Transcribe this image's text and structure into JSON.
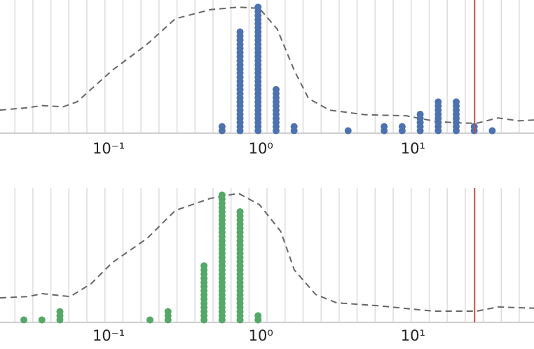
{
  "chart_data": [
    {
      "type": "dotplot",
      "xscale": "log",
      "xlim": [
        0.0193,
        62.4
      ],
      "ylim": [
        0,
        32
      ],
      "xticks": [
        {
          "value": 0.1,
          "label": "10⁻¹"
        },
        {
          "value": 1,
          "label": "10⁰"
        },
        {
          "value": 10,
          "label": "10¹"
        }
      ],
      "grid": true,
      "color": "#4c72b0",
      "bins": [
        0.0184,
        0.02416,
        0.03174,
        0.04169,
        0.05476,
        0.07193,
        0.09445,
        0.1241,
        0.1629,
        0.214,
        0.2811,
        0.3693,
        0.485,
        0.6368,
        0.8364,
        1.0985,
        1.443,
        1.895,
        2.489,
        3.268,
        4.293,
        5.638,
        7.405,
        9.727,
        12.78,
        16.78,
        22.04,
        28.94,
        38.02,
        49.93,
        65.59
      ],
      "counts": [
        0,
        0,
        0,
        0,
        0,
        0,
        0,
        0,
        0,
        0,
        0,
        0,
        2,
        25,
        31,
        11,
        2,
        0,
        0,
        1,
        0,
        2,
        2,
        5,
        8,
        8,
        2,
        1,
        0,
        0
      ],
      "density": {
        "color": "#666666",
        "x": [
          0.0193,
          0.0295,
          0.0365,
          0.0501,
          0.062,
          0.105,
          0.179,
          0.274,
          0.466,
          0.713,
          0.979,
          1.28,
          1.66,
          2.06,
          2.83,
          4.81,
          9.09,
          13.9,
          19.1,
          26.2,
          36.1,
          49.6,
          62.4
        ],
        "y": [
          5.6,
          6.2,
          6.7,
          6.4,
          7.6,
          15.2,
          21.6,
          27.8,
          30.0,
          30.6,
          30.3,
          25.3,
          15.2,
          8.4,
          5.6,
          4.5,
          4.2,
          2.9,
          2.5,
          2.4,
          3.7,
          3.0,
          3.2
        ]
      },
      "vline": {
        "value": 25.4,
        "color": "#c44e52"
      }
    },
    {
      "type": "dotplot",
      "xscale": "log",
      "xlim": [
        0.0193,
        62.4
      ],
      "ylim": [
        0,
        32
      ],
      "xticks": [
        {
          "value": 0.1,
          "label": "10⁻¹"
        },
        {
          "value": 1,
          "label": "10⁰"
        },
        {
          "value": 10,
          "label": "10¹"
        }
      ],
      "grid": true,
      "color": "#55a868",
      "bins": [
        0.0184,
        0.02416,
        0.03174,
        0.04169,
        0.05476,
        0.07193,
        0.09445,
        0.1241,
        0.1629,
        0.214,
        0.2811,
        0.3693,
        0.485,
        0.6368,
        0.8364,
        1.0985,
        1.443,
        1.895,
        2.489,
        3.268,
        4.293,
        5.638,
        7.405,
        9.727,
        12.78,
        16.78,
        22.04,
        28.94,
        38.02,
        49.93,
        65.59
      ],
      "counts": [
        0,
        1,
        1,
        3,
        0,
        0,
        0,
        0,
        1,
        3,
        0,
        14,
        31,
        27,
        2,
        0,
        0,
        0,
        0,
        0,
        0,
        0,
        0,
        0,
        0,
        0,
        0,
        0,
        0,
        0
      ],
      "density": {
        "color": "#666666",
        "x": [
          0.0193,
          0.0295,
          0.0365,
          0.0558,
          0.0767,
          0.105,
          0.179,
          0.274,
          0.466,
          0.713,
          0.979,
          1.35,
          1.66,
          2.29,
          3.15,
          5.94,
          11.2,
          13.9,
          26.2,
          36.1,
          62.4
        ],
        "y": [
          5.9,
          6.2,
          6.9,
          6.2,
          9.3,
          14.3,
          20.2,
          26.9,
          29.8,
          31.0,
          28.3,
          21.9,
          12.6,
          6.7,
          4.7,
          4.0,
          3.0,
          2.7,
          2.7,
          3.7,
          3.4
        ]
      },
      "vline": {
        "value": 25.4,
        "color": "#c44e52"
      }
    }
  ]
}
